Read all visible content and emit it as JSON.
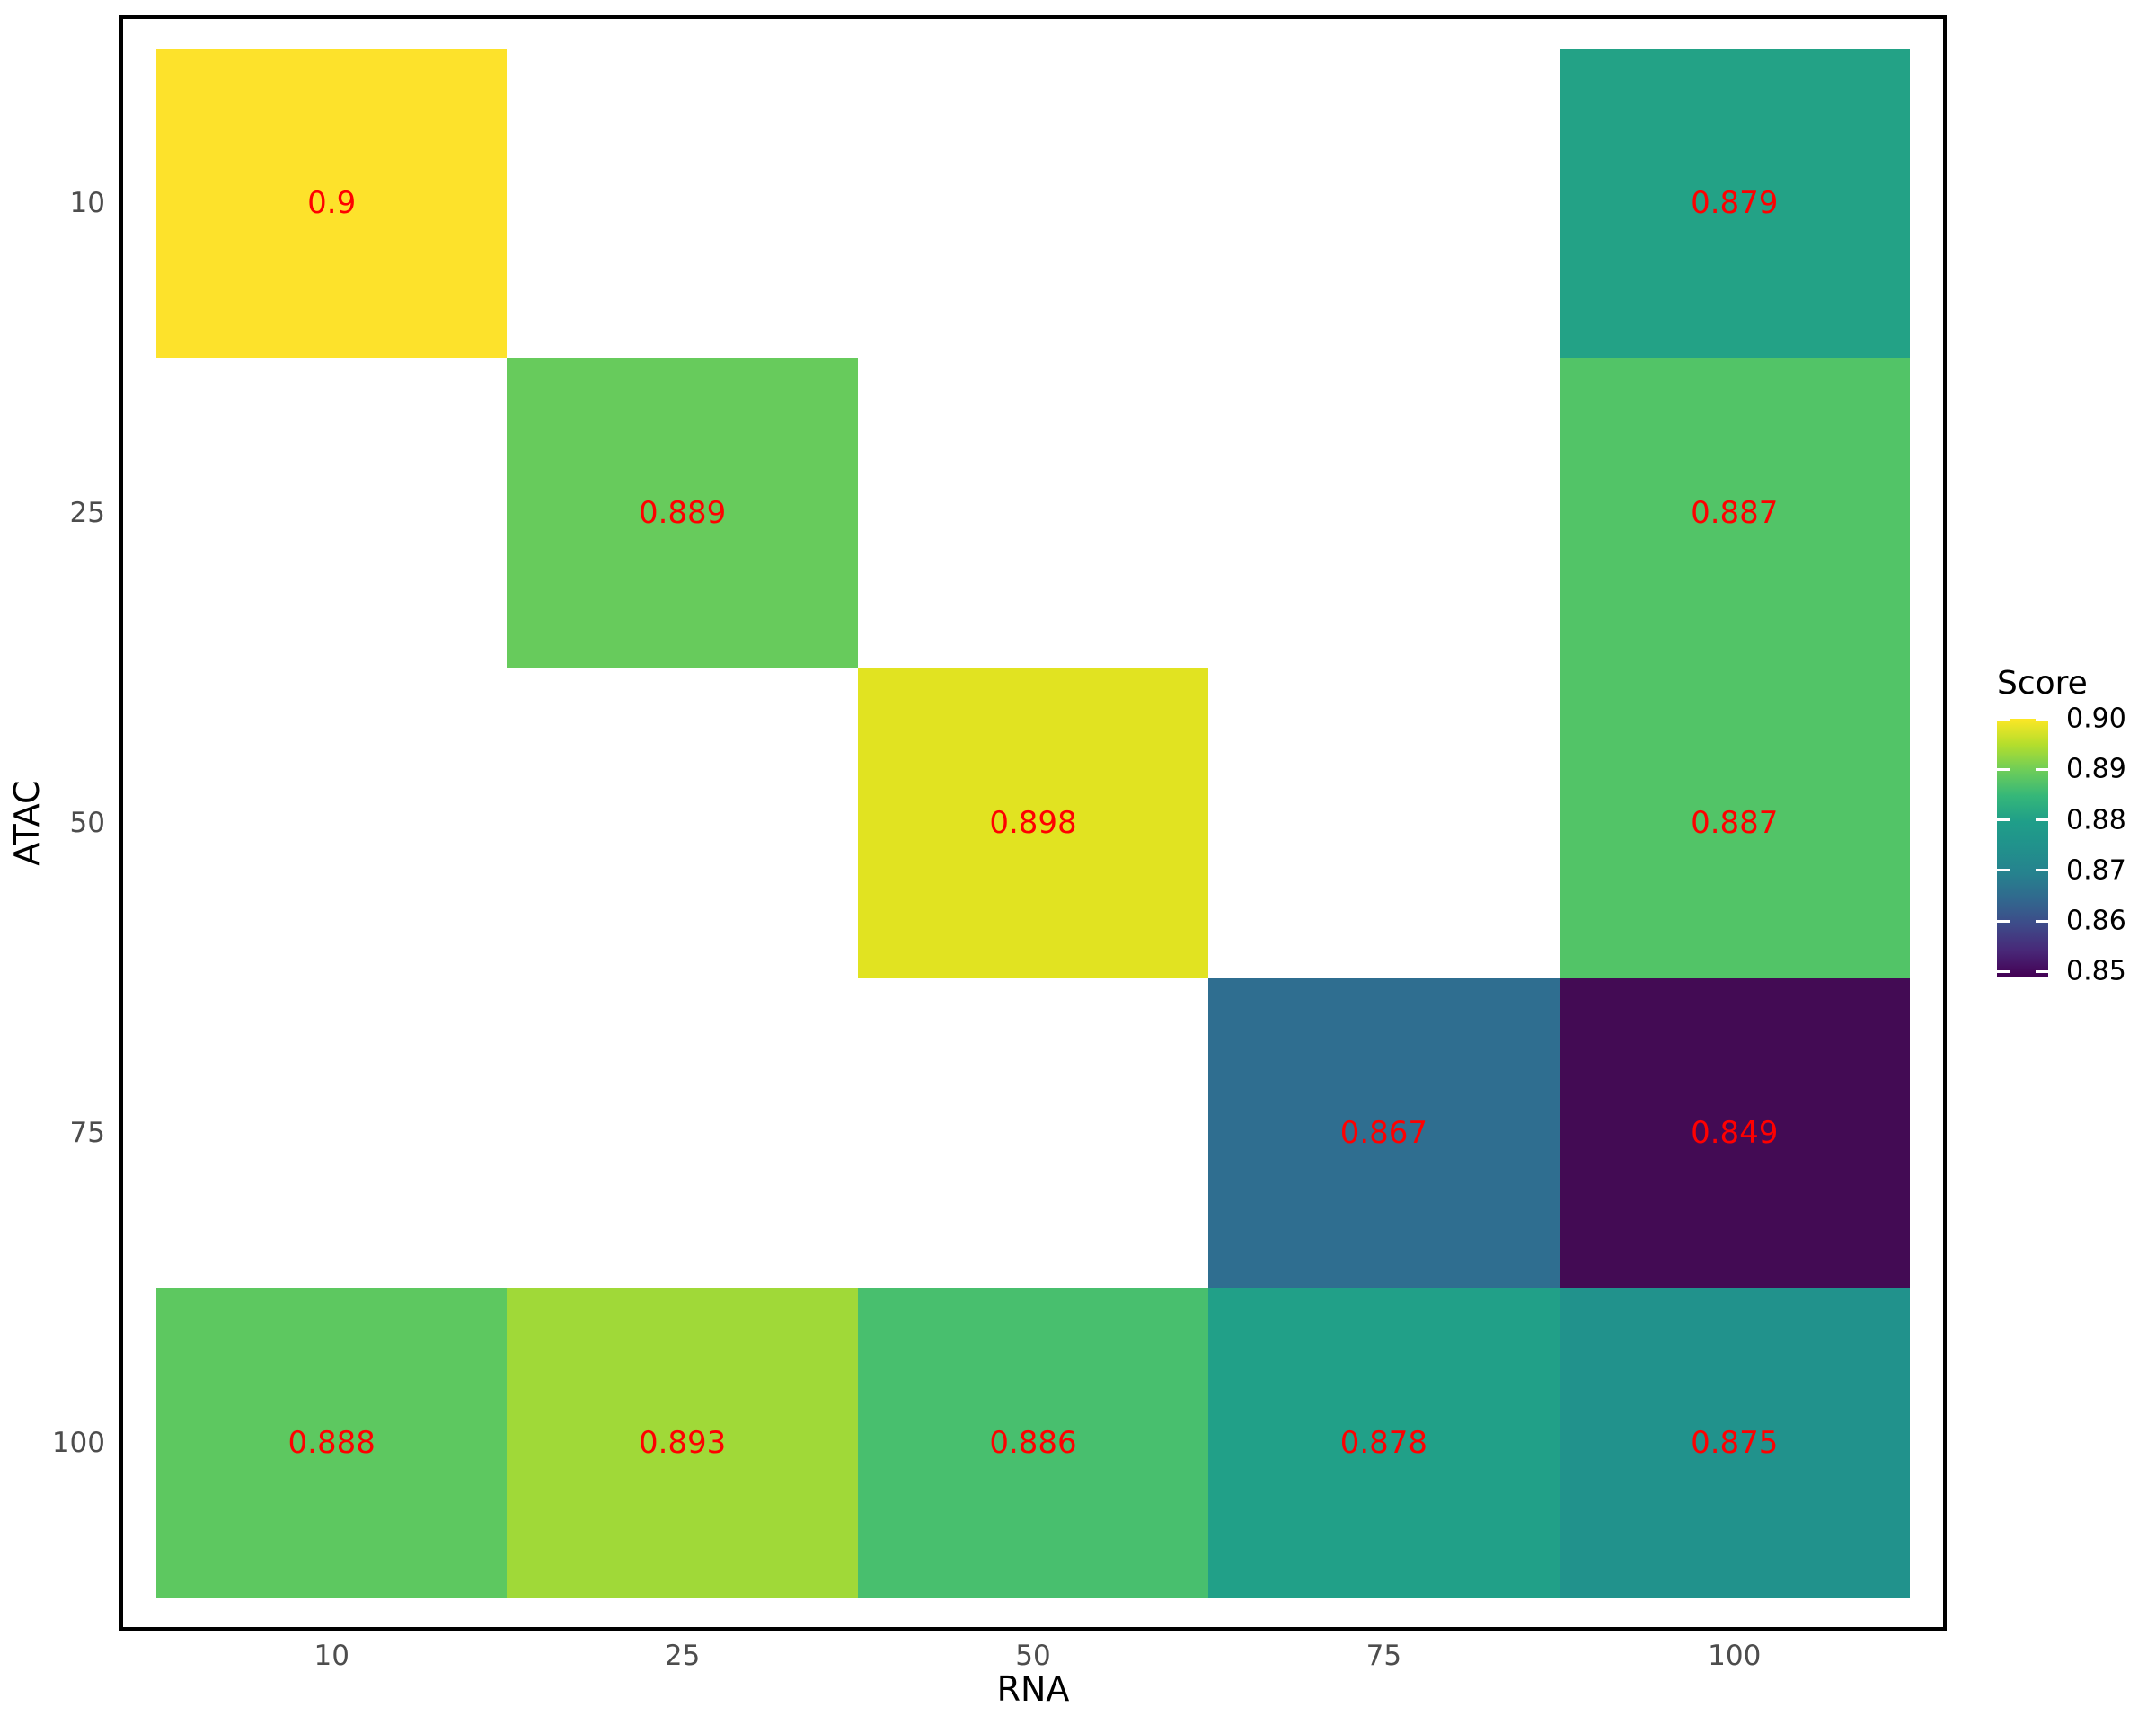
{
  "chart_data": {
    "type": "heatmap",
    "title": "",
    "xlabel": "RNA",
    "ylabel": "ATAC",
    "x_categories": [
      "10",
      "25",
      "50",
      "75",
      "100"
    ],
    "y_categories": [
      "10",
      "25",
      "50",
      "75",
      "100"
    ],
    "grid": false,
    "legend_position": "right",
    "value_label_color": "#FF0000",
    "axis_tick_color": "#4D4D4D",
    "panel_border_color": "#000000",
    "background": "#FFFFFF",
    "cells": [
      {
        "x": "10",
        "y": "10",
        "value": 0.9,
        "label": "0.9",
        "color": "#FDE22B"
      },
      {
        "x": "100",
        "y": "10",
        "value": 0.879,
        "label": "0.879",
        "color": "#23A286"
      },
      {
        "x": "25",
        "y": "25",
        "value": 0.889,
        "label": "0.889",
        "color": "#67CB5C"
      },
      {
        "x": "100",
        "y": "25",
        "value": 0.887,
        "label": "0.887",
        "color": "#52C467"
      },
      {
        "x": "50",
        "y": "50",
        "value": 0.898,
        "label": "0.898",
        "color": "#E1E321"
      },
      {
        "x": "100",
        "y": "50",
        "value": 0.887,
        "label": "0.887",
        "color": "#52C467"
      },
      {
        "x": "75",
        "y": "75",
        "value": 0.867,
        "label": "0.867",
        "color": "#2F6E90"
      },
      {
        "x": "100",
        "y": "75",
        "value": 0.849,
        "label": "0.849",
        "color": "#430B54"
      },
      {
        "x": "10",
        "y": "100",
        "value": 0.888,
        "label": "0.888",
        "color": "#5DC860"
      },
      {
        "x": "25",
        "y": "100",
        "value": 0.893,
        "label": "0.893",
        "color": "#A0D938"
      },
      {
        "x": "50",
        "y": "100",
        "value": 0.886,
        "label": "0.886",
        "color": "#48BF6E"
      },
      {
        "x": "75",
        "y": "100",
        "value": 0.878,
        "label": "0.878",
        "color": "#21A088"
      },
      {
        "x": "100",
        "y": "100",
        "value": 0.875,
        "label": "0.875",
        "color": "#21928C"
      }
    ],
    "legend": {
      "title": "Score",
      "limits": [
        0.849,
        0.9
      ],
      "ticks": [
        {
          "value": 0.9,
          "label": "0.90"
        },
        {
          "value": 0.89,
          "label": "0.89"
        },
        {
          "value": 0.88,
          "label": "0.88"
        },
        {
          "value": 0.87,
          "label": "0.87"
        },
        {
          "value": 0.86,
          "label": "0.86"
        },
        {
          "value": 0.85,
          "label": "0.85"
        }
      ],
      "gradient": [
        {
          "pos": 0.0,
          "color": "#440154"
        },
        {
          "pos": 0.1,
          "color": "#482878"
        },
        {
          "pos": 0.2,
          "color": "#3E4A89"
        },
        {
          "pos": 0.3,
          "color": "#31688E"
        },
        {
          "pos": 0.4,
          "color": "#26828E"
        },
        {
          "pos": 0.5,
          "color": "#21918C"
        },
        {
          "pos": 0.6,
          "color": "#1F9E89"
        },
        {
          "pos": 0.7,
          "color": "#35B779"
        },
        {
          "pos": 0.8,
          "color": "#6DCD59"
        },
        {
          "pos": 0.9,
          "color": "#B4DE2C"
        },
        {
          "pos": 1.0,
          "color": "#FDE725"
        }
      ]
    }
  }
}
